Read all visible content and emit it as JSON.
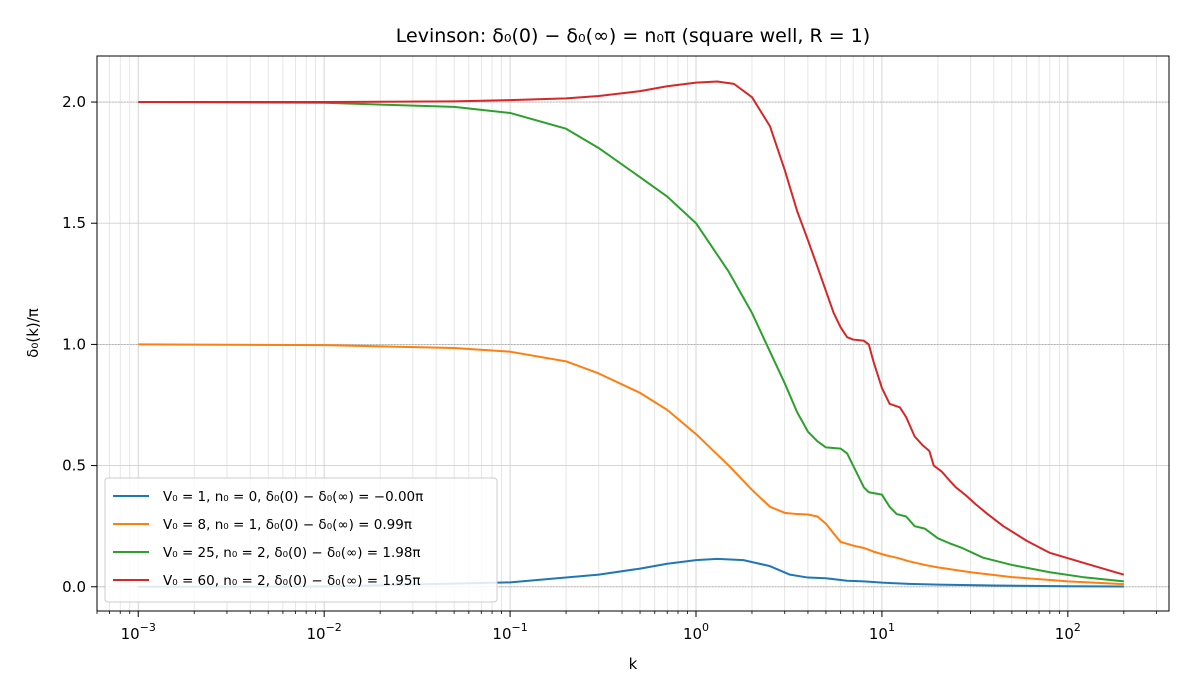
{
  "chart_data": {
    "type": "line",
    "title": "Levinson: δ₀(0) − δ₀(∞) = n₀π  (square well, R = 1)",
    "xlabel": "k",
    "ylabel": "δ₀(k)/π",
    "xscale": "log",
    "xlim": [
      0.0006,
      350
    ],
    "ylim": [
      -0.1,
      2.19
    ],
    "x_ticks": [
      {
        "value": 0.001,
        "base": "10",
        "exp": "−3"
      },
      {
        "value": 0.01,
        "base": "10",
        "exp": "−2"
      },
      {
        "value": 0.1,
        "base": "10",
        "exp": "−1"
      },
      {
        "value": 1,
        "base": "10",
        "exp": "0"
      },
      {
        "value": 10,
        "base": "10",
        "exp": "1"
      },
      {
        "value": 100,
        "base": "10",
        "exp": "2"
      }
    ],
    "y_ticks": [
      "0.0",
      "0.5",
      "1.0",
      "1.5",
      "2.0"
    ],
    "grid": true,
    "legend_position": "lower-left",
    "series": [
      {
        "name": "V₀ = 1, n₀ = 0, δ₀(0) − δ₀(∞) = −0.00π",
        "color": "#1f77b4",
        "points": [
          [
            0.001,
            0.0
          ],
          [
            0.01,
            0.001
          ],
          [
            0.1,
            0.018
          ],
          [
            0.3,
            0.05
          ],
          [
            0.5,
            0.075
          ],
          [
            0.7,
            0.095
          ],
          [
            1.0,
            0.11
          ],
          [
            1.3,
            0.115
          ],
          [
            1.8,
            0.11
          ],
          [
            2.5,
            0.085
          ],
          [
            3.2,
            0.05
          ],
          [
            4.0,
            0.038
          ],
          [
            5.0,
            0.035
          ],
          [
            6.5,
            0.025
          ],
          [
            8.0,
            0.022
          ],
          [
            10.0,
            0.017
          ],
          [
            14,
            0.012
          ],
          [
            20,
            0.009
          ],
          [
            40,
            0.005
          ],
          [
            100,
            0.002
          ],
          [
            200,
            0.001
          ]
        ]
      },
      {
        "name": "V₀ = 8, n₀ = 1, δ₀(0) − δ₀(∞) = 0.99π",
        "color": "#ff7f0e",
        "points": [
          [
            0.001,
            1.0
          ],
          [
            0.01,
            0.997
          ],
          [
            0.05,
            0.985
          ],
          [
            0.1,
            0.97
          ],
          [
            0.2,
            0.93
          ],
          [
            0.3,
            0.88
          ],
          [
            0.5,
            0.8
          ],
          [
            0.7,
            0.73
          ],
          [
            1.0,
            0.63
          ],
          [
            1.5,
            0.5
          ],
          [
            2.0,
            0.4
          ],
          [
            2.5,
            0.33
          ],
          [
            3.0,
            0.305
          ],
          [
            3.5,
            0.3
          ],
          [
            4.0,
            0.298
          ],
          [
            4.5,
            0.29
          ],
          [
            5.0,
            0.26
          ],
          [
            5.5,
            0.22
          ],
          [
            6.0,
            0.185
          ],
          [
            7.0,
            0.17
          ],
          [
            8.0,
            0.16
          ],
          [
            9.0,
            0.145
          ],
          [
            10.5,
            0.13
          ],
          [
            12.0,
            0.12
          ],
          [
            14.0,
            0.105
          ],
          [
            17,
            0.09
          ],
          [
            20,
            0.08
          ],
          [
            30,
            0.06
          ],
          [
            50,
            0.04
          ],
          [
            100,
            0.022
          ],
          [
            200,
            0.011
          ]
        ]
      },
      {
        "name": "V₀ = 25, n₀ = 2, δ₀(0) − δ₀(∞) = 1.98π",
        "color": "#2ca02c",
        "points": [
          [
            0.001,
            2.0
          ],
          [
            0.01,
            1.997
          ],
          [
            0.05,
            1.98
          ],
          [
            0.1,
            1.955
          ],
          [
            0.2,
            1.89
          ],
          [
            0.3,
            1.81
          ],
          [
            0.5,
            1.69
          ],
          [
            0.7,
            1.61
          ],
          [
            1.0,
            1.5
          ],
          [
            1.5,
            1.3
          ],
          [
            2.0,
            1.13
          ],
          [
            2.5,
            0.97
          ],
          [
            3.0,
            0.84
          ],
          [
            3.5,
            0.72
          ],
          [
            4.0,
            0.64
          ],
          [
            4.5,
            0.6
          ],
          [
            5.0,
            0.575
          ],
          [
            6.0,
            0.57
          ],
          [
            6.5,
            0.55
          ],
          [
            7.0,
            0.5
          ],
          [
            8.0,
            0.41
          ],
          [
            8.5,
            0.39
          ],
          [
            10.0,
            0.38
          ],
          [
            11.0,
            0.33
          ],
          [
            12.0,
            0.3
          ],
          [
            13.5,
            0.29
          ],
          [
            15.0,
            0.25
          ],
          [
            17.0,
            0.24
          ],
          [
            20.0,
            0.2
          ],
          [
            23.0,
            0.18
          ],
          [
            27,
            0.16
          ],
          [
            35,
            0.12
          ],
          [
            50,
            0.09
          ],
          [
            80,
            0.06
          ],
          [
            120,
            0.04
          ],
          [
            200,
            0.022
          ]
        ]
      },
      {
        "name": "V₀ = 60, n₀ = 2, δ₀(0) − δ₀(∞) = 1.95π",
        "color": "#d62728",
        "points": [
          [
            0.001,
            2.0
          ],
          [
            0.01,
            2.0
          ],
          [
            0.05,
            2.003
          ],
          [
            0.1,
            2.008
          ],
          [
            0.2,
            2.015
          ],
          [
            0.3,
            2.025
          ],
          [
            0.5,
            2.045
          ],
          [
            0.7,
            2.065
          ],
          [
            1.0,
            2.08
          ],
          [
            1.3,
            2.085
          ],
          [
            1.6,
            2.075
          ],
          [
            2.0,
            2.02
          ],
          [
            2.5,
            1.9
          ],
          [
            3.0,
            1.72
          ],
          [
            3.5,
            1.55
          ],
          [
            4.0,
            1.43
          ],
          [
            4.5,
            1.32
          ],
          [
            5.0,
            1.22
          ],
          [
            5.5,
            1.13
          ],
          [
            6.0,
            1.07
          ],
          [
            6.5,
            1.03
          ],
          [
            7.0,
            1.02
          ],
          [
            8.0,
            1.015
          ],
          [
            8.5,
            1.0
          ],
          [
            9.0,
            0.93
          ],
          [
            10.0,
            0.82
          ],
          [
            11.0,
            0.755
          ],
          [
            12.5,
            0.74
          ],
          [
            13.5,
            0.7
          ],
          [
            15.0,
            0.62
          ],
          [
            16.5,
            0.585
          ],
          [
            18.0,
            0.56
          ],
          [
            19.0,
            0.5
          ],
          [
            21.0,
            0.475
          ],
          [
            23.0,
            0.44
          ],
          [
            25.0,
            0.41
          ],
          [
            28.0,
            0.38
          ],
          [
            32.0,
            0.34
          ],
          [
            37,
            0.3
          ],
          [
            45,
            0.25
          ],
          [
            60,
            0.19
          ],
          [
            80,
            0.14
          ],
          [
            120,
            0.1
          ],
          [
            200,
            0.05
          ]
        ]
      }
    ]
  }
}
